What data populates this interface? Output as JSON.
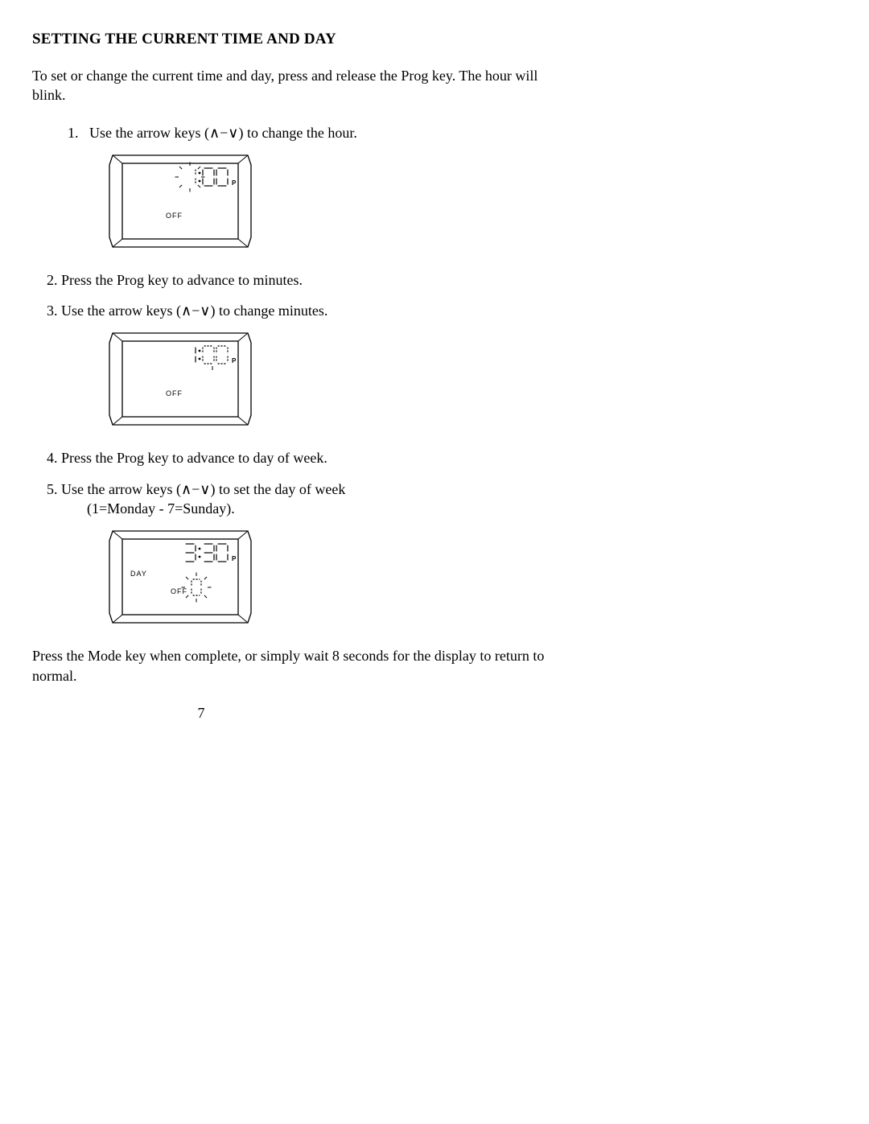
{
  "heading": "SETTING THE CURRENT TIME AND DAY",
  "intro": "To set or change the current time and day, press and release the Prog key.  The hour will blink.",
  "step1_num": "1.",
  "step1_text": "Use the arrow keys (∧−∨) to change the hour.",
  "step2": "2. Press the Prog key to advance to minutes.",
  "step3": "3. Use the arrow keys (∧−∨) to change minutes.",
  "step4": "4. Press the Prog key to advance to day of week.",
  "step5": "5. Use the arrow keys (∧−∨) to set the day of week",
  "step5_sub": "(1=Monday - 7=Sunday).",
  "closing": "Press the Mode key when complete, or simply wait 8 seconds for the display to return to normal.",
  "page_number": "7",
  "lcd1": {
    "time": "1:00",
    "ampm": "P",
    "off_label": "OFF",
    "blink_hour": true,
    "blink_minutes": false,
    "show_day": false,
    "day_label": "",
    "show_blink_digit": false
  },
  "lcd2": {
    "time": "1:00",
    "ampm": "P",
    "off_label": "OFF",
    "blink_hour": false,
    "blink_minutes": true,
    "show_day": false,
    "day_label": "",
    "show_blink_digit": false
  },
  "lcd3": {
    "time": "3:30",
    "ampm": "P",
    "off_label": "OFF",
    "blink_hour": false,
    "blink_minutes": false,
    "show_day": true,
    "day_label": "DAY",
    "show_blink_digit": true
  },
  "colors": {
    "stroke": "#000000",
    "bg": "#ffffff"
  }
}
